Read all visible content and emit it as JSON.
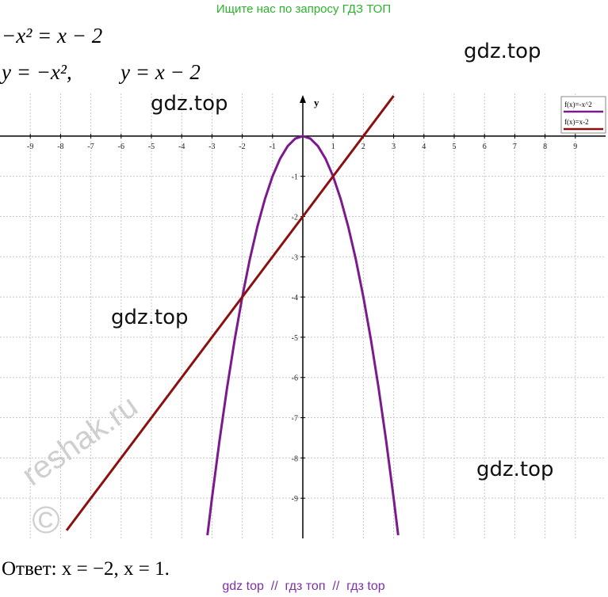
{
  "header": "Ищите нас по запросу ГДЗ ТОП",
  "equations": [
    "−x² = x − 2",
    "y = −x²,",
    "y = x − 2"
  ],
  "watermarks": [
    "gdz.top",
    "gdz.top",
    "gdz.top",
    "gdz.top",
    "reshak.ru",
    "©"
  ],
  "answer": "Ответ: x = −2, x = 1.",
  "footer": "gdz top  //  гдз топ  //  гдз top",
  "chart_data": {
    "type": "line",
    "y_label": "y",
    "xlim": [
      -10,
      10
    ],
    "ylim": [
      -10,
      1.06
    ],
    "xticks": [
      -9,
      -8,
      -7,
      -6,
      -5,
      -4,
      -3,
      -2,
      -1,
      1,
      2,
      3,
      4,
      5,
      6,
      7,
      8,
      9
    ],
    "yticks": [
      -9,
      -8,
      -7,
      -6,
      -5,
      -4,
      -3,
      -2,
      -1
    ],
    "grid": true,
    "legend": "upper right",
    "series": [
      {
        "name": "f(x)=-x^2",
        "color": "#7b1a8c",
        "x": [
          -3.15,
          -3,
          -2.75,
          -2.5,
          -2.25,
          -2,
          -1.75,
          -1.5,
          -1.25,
          -1,
          -0.75,
          -0.5,
          -0.25,
          0,
          0.25,
          0.5,
          0.75,
          1,
          1.25,
          1.5,
          1.75,
          2,
          2.25,
          2.5,
          2.75,
          3,
          3.15
        ],
        "values": [
          -9.92,
          -9,
          -7.5625,
          -6.25,
          -5.0625,
          -4,
          -3.0625,
          -2.25,
          -1.5625,
          -1,
          -0.5625,
          -0.25,
          -0.0625,
          0,
          -0.0625,
          -0.25,
          -0.5625,
          -1,
          -1.5625,
          -2.25,
          -3.0625,
          -4,
          -5.0625,
          -6.25,
          -7.5625,
          -9,
          -9.92
        ]
      },
      {
        "name": "f(x)=x-2",
        "color": "#8b1010",
        "x": [
          -7.8,
          3
        ],
        "values": [
          -9.8,
          1
        ]
      }
    ]
  }
}
